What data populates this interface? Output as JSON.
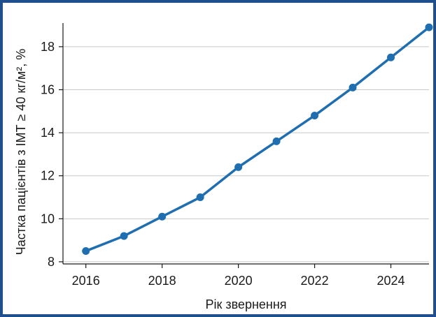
{
  "chart_data": {
    "type": "line",
    "title": "",
    "xlabel": "Рік звернення",
    "ylabel": "Частка пацієнтів з ІМТ ≥ 40 кг/м², %",
    "x": [
      2016,
      2017,
      2018,
      2019,
      2020,
      2021,
      2022,
      2023,
      2024,
      2025
    ],
    "series": [
      {
        "values": [
          8.5,
          9.2,
          10.1,
          11.0,
          12.4,
          13.6,
          14.8,
          16.1,
          17.5,
          18.9
        ]
      }
    ],
    "xlim": [
      2015.4,
      2025
    ],
    "ylim": [
      7.9,
      19.1
    ],
    "xticks": [
      2016,
      2018,
      2020,
      2022,
      2024
    ],
    "yticks": [
      8,
      10,
      12,
      14,
      16,
      18
    ],
    "grid": "horizontal",
    "legend": "none",
    "colors": {
      "line": "#1f6eb0",
      "frame": "#1f4f8c",
      "grid": "#c8c8c8"
    }
  }
}
